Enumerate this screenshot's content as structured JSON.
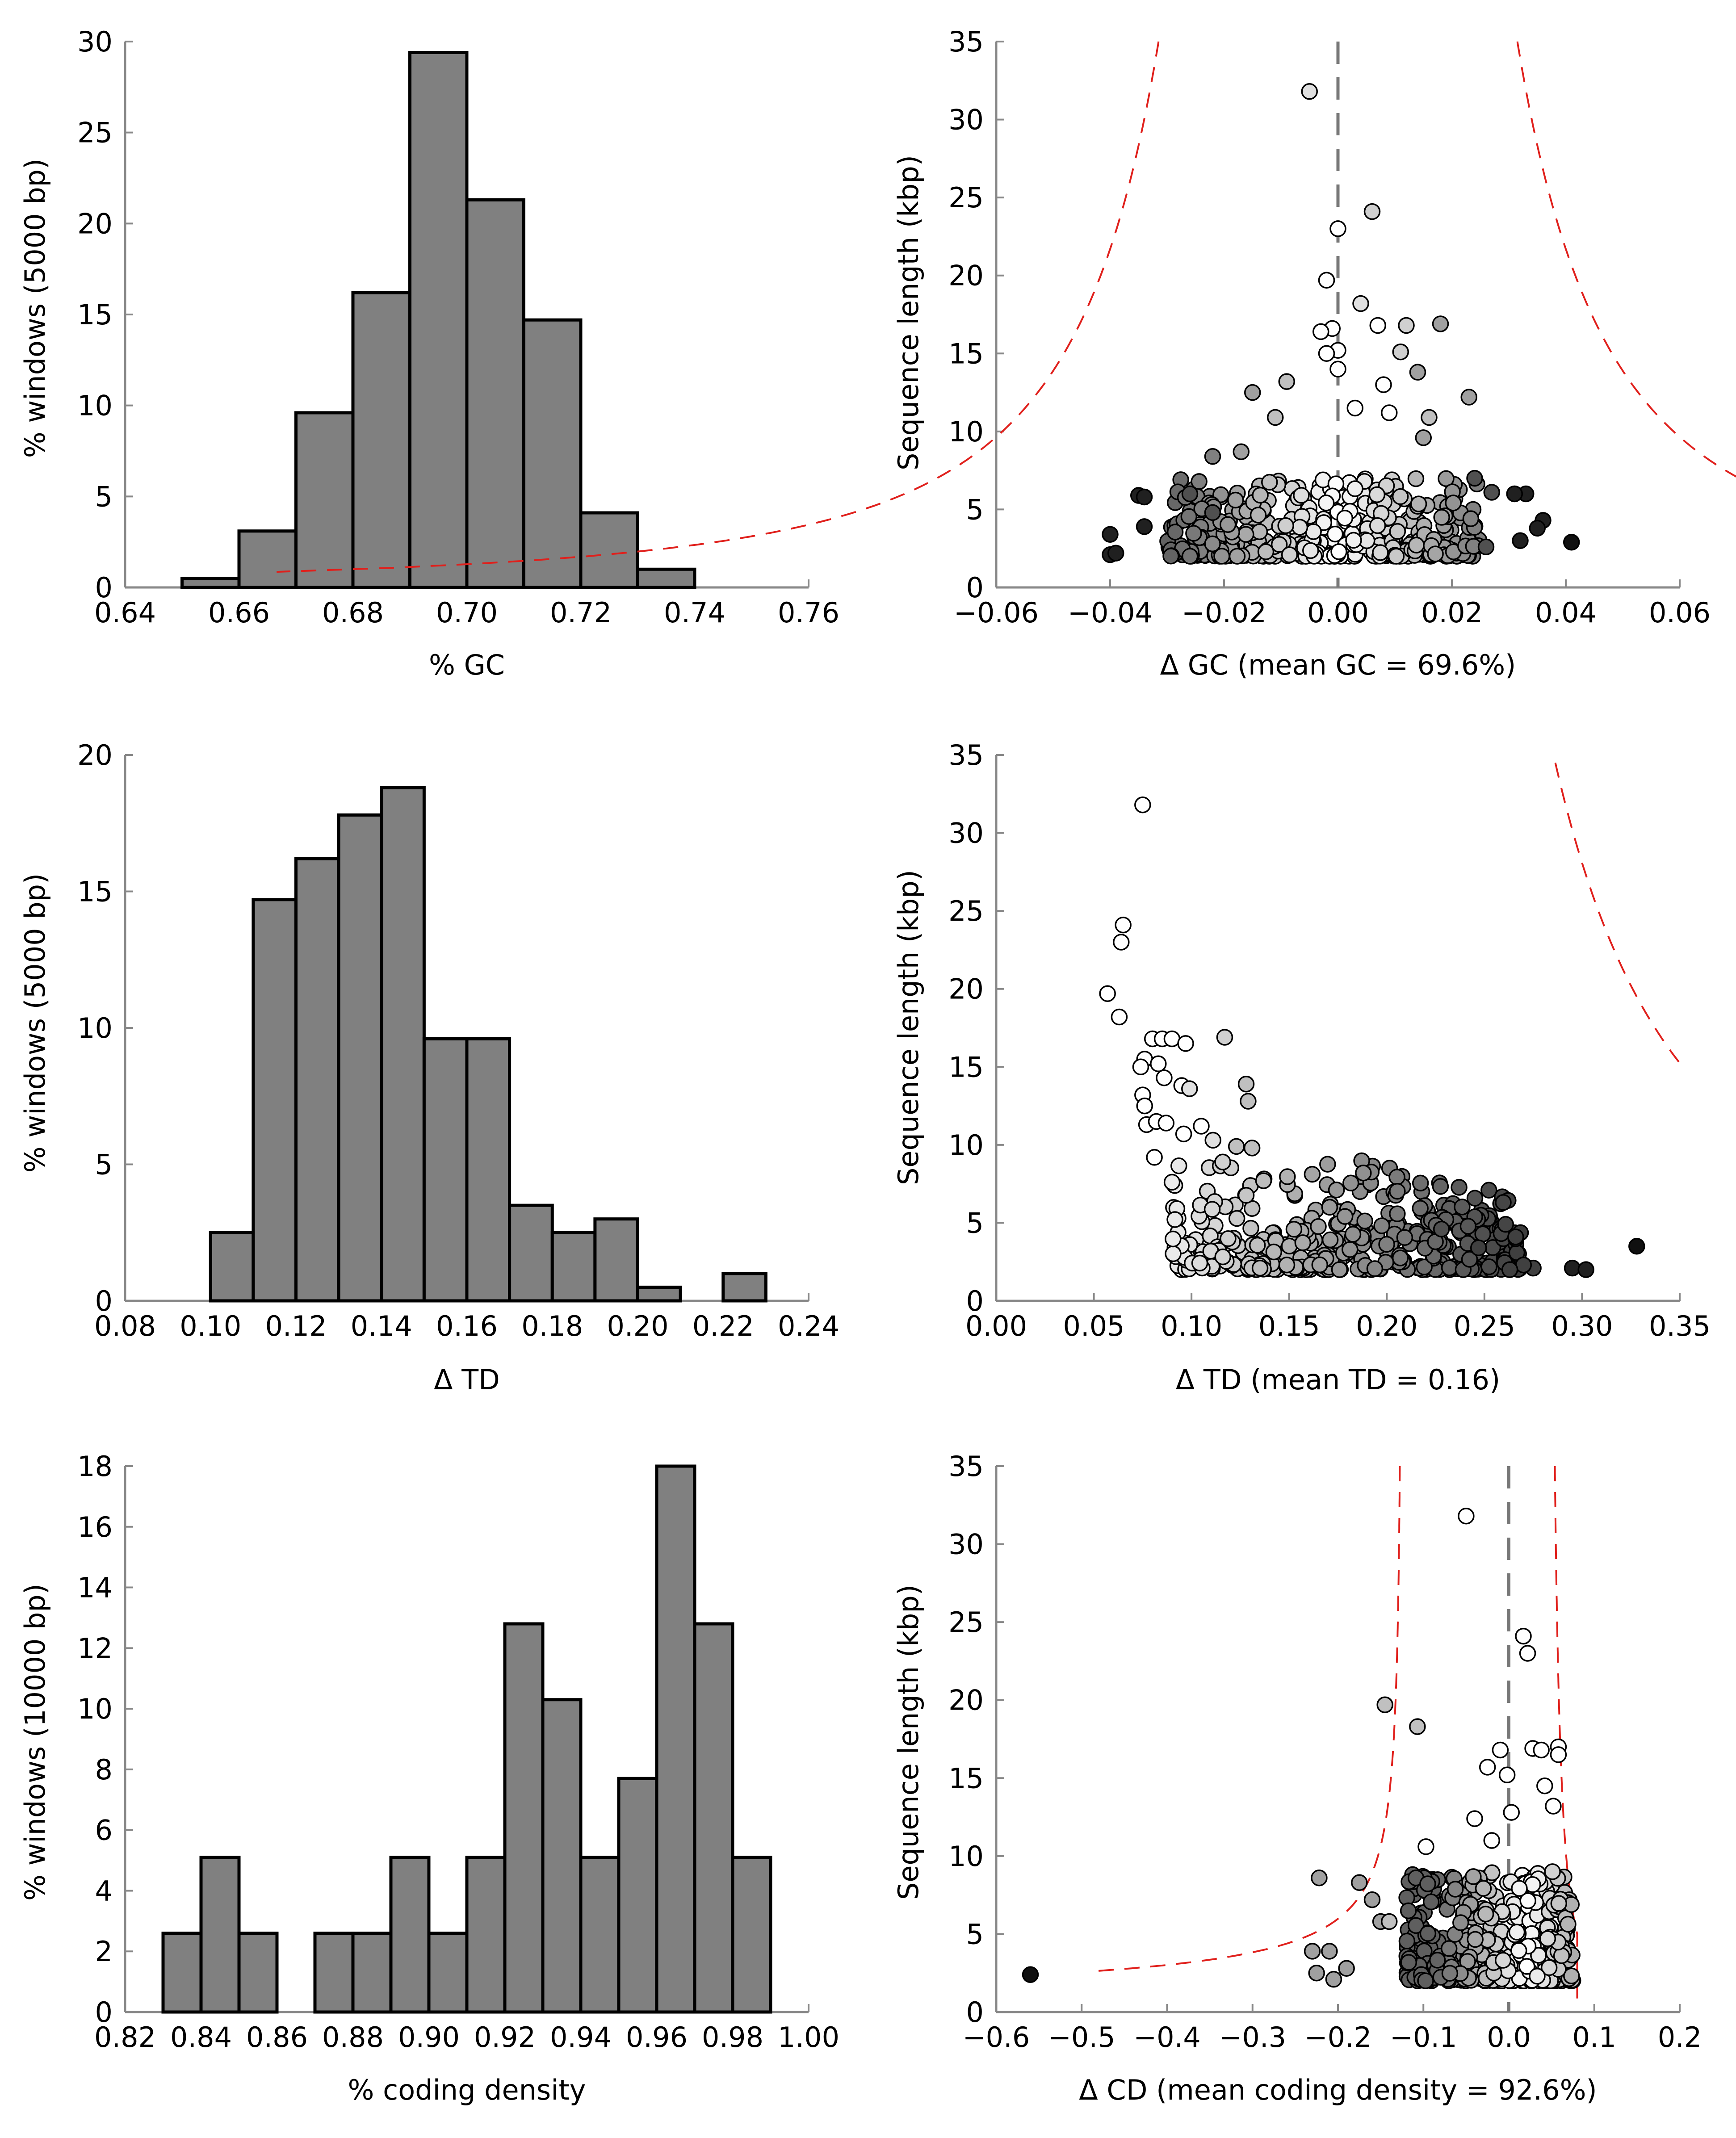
{
  "chart_data": [
    {
      "id": "hist_gc",
      "type": "bar",
      "xlabel": "% GC",
      "ylabel": "% windows (5000 bp)",
      "xlim": [
        0.64,
        0.76
      ],
      "ylim": [
        0,
        30
      ],
      "xticks": [
        "0.64",
        "0.66",
        "0.68",
        "0.70",
        "0.72",
        "0.74",
        "0.76"
      ],
      "yticks": [
        "0",
        "5",
        "10",
        "15",
        "20",
        "25",
        "30"
      ],
      "bin_width": 0.01,
      "bin_edges": [
        0.65,
        0.66,
        0.67,
        0.68,
        0.69,
        0.7,
        0.71,
        0.72,
        0.73
      ],
      "values": [
        0.5,
        3.1,
        9.6,
        16.2,
        29.4,
        21.3,
        14.7,
        4.1,
        1.0
      ],
      "bar_color": "#808080"
    },
    {
      "id": "scatter_gc",
      "type": "scatter",
      "xlabel": "Δ GC (mean GC = 69.6%)",
      "ylabel": "Sequence length (kbp)",
      "xlim": [
        -0.06,
        0.06
      ],
      "ylim": [
        0,
        35
      ],
      "xticks": [
        "−0.06",
        "−0.04",
        "−0.02",
        "0.00",
        "0.02",
        "0.04",
        "0.06"
      ],
      "yticks": [
        "0",
        "5",
        "10",
        "15",
        "20",
        "25",
        "30",
        "35"
      ],
      "zero_line": true,
      "bound_curve": "gc",
      "highlight_points": [
        {
          "x": -0.005,
          "y": 31.8,
          "shade": "#e0e0e0"
        },
        {
          "x": 0.006,
          "y": 24.1,
          "shade": "#d0d0d0"
        },
        {
          "x": 0.0,
          "y": 23.0,
          "shade": "#ffffff"
        },
        {
          "x": -0.002,
          "y": 19.7,
          "shade": "#ffffff"
        },
        {
          "x": 0.004,
          "y": 18.2,
          "shade": "#e0e0e0"
        },
        {
          "x": 0.018,
          "y": 16.9,
          "shade": "#a0a0a0"
        },
        {
          "x": 0.012,
          "y": 16.8,
          "shade": "#d0d0d0"
        },
        {
          "x": -0.001,
          "y": 16.6,
          "shade": "#ffffff"
        },
        {
          "x": 0.007,
          "y": 16.8,
          "shade": "#ffffff"
        },
        {
          "x": -0.003,
          "y": 16.4,
          "shade": "#ffffff"
        },
        {
          "x": 0.011,
          "y": 15.1,
          "shade": "#d0d0d0"
        },
        {
          "x": 0.0,
          "y": 15.2,
          "shade": "#ffffff"
        },
        {
          "x": -0.002,
          "y": 15.0,
          "shade": "#ffffff"
        },
        {
          "x": 0.0,
          "y": 14.0,
          "shade": "#ffffff"
        },
        {
          "x": 0.014,
          "y": 13.8,
          "shade": "#a0a0a0"
        },
        {
          "x": -0.009,
          "y": 13.2,
          "shade": "#c0c0c0"
        },
        {
          "x": 0.008,
          "y": 13.0,
          "shade": "#ffffff"
        },
        {
          "x": 0.023,
          "y": 12.2,
          "shade": "#a0a0a0"
        },
        {
          "x": -0.015,
          "y": 12.5,
          "shade": "#a0a0a0"
        },
        {
          "x": 0.003,
          "y": 11.5,
          "shade": "#ffffff"
        },
        {
          "x": 0.016,
          "y": 10.9,
          "shade": "#c0c0c0"
        },
        {
          "x": -0.011,
          "y": 10.9,
          "shade": "#c0c0c0"
        },
        {
          "x": 0.009,
          "y": 11.2,
          "shade": "#ffffff"
        },
        {
          "x": -0.017,
          "y": 8.7,
          "shade": "#a0a0a0"
        },
        {
          "x": -0.022,
          "y": 8.4,
          "shade": "#808080"
        },
        {
          "x": 0.015,
          "y": 9.6,
          "shade": "#a0a0a0"
        },
        {
          "x": -0.04,
          "y": 3.4,
          "shade": "#202020"
        },
        {
          "x": -0.04,
          "y": 2.1,
          "shade": "#202020"
        },
        {
          "x": -0.039,
          "y": 2.2,
          "shade": "#202020"
        },
        {
          "x": -0.035,
          "y": 5.9,
          "shade": "#202020"
        },
        {
          "x": -0.034,
          "y": 5.8,
          "shade": "#202020"
        },
        {
          "x": -0.034,
          "y": 3.9,
          "shade": "#202020"
        },
        {
          "x": 0.033,
          "y": 6.0,
          "shade": "#202020"
        },
        {
          "x": 0.031,
          "y": 6.0,
          "shade": "#202020"
        },
        {
          "x": 0.032,
          "y": 3.0,
          "shade": "#202020"
        },
        {
          "x": 0.036,
          "y": 4.3,
          "shade": "#202020"
        },
        {
          "x": 0.035,
          "y": 3.8,
          "shade": "#202020"
        },
        {
          "x": 0.041,
          "y": 2.9,
          "shade": "#101010"
        },
        {
          "x": -0.026,
          "y": 6.0,
          "shade": "#505050"
        },
        {
          "x": 0.027,
          "y": 6.1,
          "shade": "#505050"
        },
        {
          "x": 0.024,
          "y": 7.0,
          "shade": "#505050"
        },
        {
          "x": -0.022,
          "y": 4.8,
          "shade": "#505050"
        },
        {
          "x": 0.026,
          "y": 2.6,
          "shade": "#505050"
        }
      ],
      "cloud": {
        "x_range": [
          -0.03,
          0.025
        ],
        "y_range": [
          2,
          7
        ],
        "count": 420
      }
    },
    {
      "id": "hist_td",
      "type": "bar",
      "xlabel": "Δ TD",
      "ylabel": "% windows (5000 bp)",
      "xlim": [
        0.08,
        0.24
      ],
      "ylim": [
        0,
        20
      ],
      "xticks": [
        "0.08",
        "0.10",
        "0.12",
        "0.14",
        "0.16",
        "0.18",
        "0.20",
        "0.22",
        "0.24"
      ],
      "yticks": [
        "0",
        "5",
        "10",
        "15",
        "20"
      ],
      "bin_width": 0.01,
      "bin_edges": [
        0.1,
        0.11,
        0.12,
        0.13,
        0.14,
        0.15,
        0.16,
        0.17,
        0.18,
        0.19,
        0.2,
        0.22
      ],
      "values": [
        2.5,
        14.7,
        16.2,
        17.8,
        18.8,
        9.6,
        9.6,
        3.5,
        2.5,
        3.0,
        0.5,
        1.0
      ],
      "bar_color": "#808080"
    },
    {
      "id": "scatter_td",
      "type": "scatter",
      "xlabel": "Δ TD (mean TD = 0.16)",
      "ylabel": "Sequence length (kbp)",
      "xlim": [
        0.0,
        0.35
      ],
      "ylim": [
        0,
        35
      ],
      "xticks": [
        "0.00",
        "0.05",
        "0.10",
        "0.15",
        "0.20",
        "0.25",
        "0.30",
        "0.35"
      ],
      "yticks": [
        "0",
        "5",
        "10",
        "15",
        "20",
        "25",
        "30",
        "35"
      ],
      "zero_line": false,
      "bound_curve": "td",
      "highlight_points": [
        {
          "x": 0.075,
          "y": 31.8,
          "shade": "#ffffff"
        },
        {
          "x": 0.065,
          "y": 24.1,
          "shade": "#ffffff"
        },
        {
          "x": 0.064,
          "y": 23.0,
          "shade": "#ffffff"
        },
        {
          "x": 0.057,
          "y": 19.7,
          "shade": "#ffffff"
        },
        {
          "x": 0.063,
          "y": 18.2,
          "shade": "#ffffff"
        },
        {
          "x": 0.08,
          "y": 16.8,
          "shade": "#ffffff"
        },
        {
          "x": 0.085,
          "y": 16.8,
          "shade": "#ffffff"
        },
        {
          "x": 0.09,
          "y": 16.8,
          "shade": "#ffffff"
        },
        {
          "x": 0.097,
          "y": 16.5,
          "shade": "#ffffff"
        },
        {
          "x": 0.117,
          "y": 16.9,
          "shade": "#d0d0d0"
        },
        {
          "x": 0.076,
          "y": 15.5,
          "shade": "#ffffff"
        },
        {
          "x": 0.074,
          "y": 15.0,
          "shade": "#ffffff"
        },
        {
          "x": 0.083,
          "y": 15.2,
          "shade": "#ffffff"
        },
        {
          "x": 0.086,
          "y": 14.3,
          "shade": "#ffffff"
        },
        {
          "x": 0.095,
          "y": 13.8,
          "shade": "#ffffff"
        },
        {
          "x": 0.099,
          "y": 13.6,
          "shade": "#e0e0e0"
        },
        {
          "x": 0.075,
          "y": 13.2,
          "shade": "#ffffff"
        },
        {
          "x": 0.076,
          "y": 12.5,
          "shade": "#ffffff"
        },
        {
          "x": 0.128,
          "y": 13.9,
          "shade": "#c0c0c0"
        },
        {
          "x": 0.129,
          "y": 12.8,
          "shade": "#c0c0c0"
        },
        {
          "x": 0.077,
          "y": 11.3,
          "shade": "#ffffff"
        },
        {
          "x": 0.082,
          "y": 11.5,
          "shade": "#ffffff"
        },
        {
          "x": 0.087,
          "y": 11.4,
          "shade": "#ffffff"
        },
        {
          "x": 0.105,
          "y": 11.2,
          "shade": "#ffffff"
        },
        {
          "x": 0.096,
          "y": 10.7,
          "shade": "#ffffff"
        },
        {
          "x": 0.111,
          "y": 10.3,
          "shade": "#e0e0e0"
        },
        {
          "x": 0.123,
          "y": 9.9,
          "shade": "#c0c0c0"
        },
        {
          "x": 0.131,
          "y": 9.8,
          "shade": "#c0c0c0"
        },
        {
          "x": 0.081,
          "y": 9.2,
          "shade": "#ffffff"
        },
        {
          "x": 0.116,
          "y": 8.9,
          "shade": "#d0d0d0"
        },
        {
          "x": 0.188,
          "y": 8.2,
          "shade": "#909090"
        },
        {
          "x": 0.295,
          "y": 2.1,
          "shade": "#202020"
        },
        {
          "x": 0.302,
          "y": 2.0,
          "shade": "#202020"
        },
        {
          "x": 0.328,
          "y": 3.5,
          "shade": "#101010"
        },
        {
          "x": 0.266,
          "y": 4.1,
          "shade": "#404040"
        },
        {
          "x": 0.247,
          "y": 3.4,
          "shade": "#404040"
        },
        {
          "x": 0.228,
          "y": 4.6,
          "shade": "#505050"
        },
        {
          "x": 0.275,
          "y": 2.1,
          "shade": "#404040"
        },
        {
          "x": 0.27,
          "y": 2.3,
          "shade": "#404040"
        },
        {
          "x": 0.263,
          "y": 2.0,
          "shade": "#404040"
        }
      ],
      "cloud": {
        "x_range": [
          0.09,
          0.27
        ],
        "y_range": [
          2,
          8
        ],
        "count": 420
      }
    },
    {
      "id": "hist_cd",
      "type": "bar",
      "xlabel": "% coding density",
      "ylabel": "% windows (10000 bp)",
      "xlim": [
        0.82,
        1.0
      ],
      "ylim": [
        0,
        18
      ],
      "xticks": [
        "0.82",
        "0.84",
        "0.86",
        "0.88",
        "0.90",
        "0.92",
        "0.94",
        "0.96",
        "0.98",
        "1.00"
      ],
      "yticks": [
        "0",
        "2",
        "4",
        "6",
        "8",
        "10",
        "12",
        "14",
        "16",
        "18"
      ],
      "bin_width": 0.01,
      "bin_edges": [
        0.83,
        0.84,
        0.85,
        0.87,
        0.88,
        0.89,
        0.9,
        0.91,
        0.92,
        0.93,
        0.94,
        0.95,
        0.96,
        0.97,
        0.98
      ],
      "values": [
        2.6,
        5.1,
        2.6,
        2.6,
        2.6,
        5.1,
        2.6,
        5.1,
        12.8,
        10.3,
        5.1,
        7.7,
        18.0,
        12.8,
        5.1
      ],
      "bar_color": "#808080"
    },
    {
      "id": "scatter_cd",
      "type": "scatter",
      "xlabel": "Δ CD (mean coding density = 92.6%)",
      "ylabel": "Sequence length (kbp)",
      "xlim": [
        -0.6,
        0.2
      ],
      "ylim": [
        0,
        35
      ],
      "xticks": [
        "−0.6",
        "−0.5",
        "−0.4",
        "−0.3",
        "−0.2",
        "−0.1",
        "0.0",
        "0.1",
        "0.2"
      ],
      "yticks": [
        "0",
        "5",
        "10",
        "15",
        "20",
        "25",
        "30",
        "35"
      ],
      "zero_line": true,
      "bound_curve": "cd",
      "highlight_points": [
        {
          "x": -0.05,
          "y": 31.8,
          "shade": "#ffffff"
        },
        {
          "x": 0.017,
          "y": 24.1,
          "shade": "#ffffff"
        },
        {
          "x": 0.022,
          "y": 23.0,
          "shade": "#ffffff"
        },
        {
          "x": -0.145,
          "y": 19.7,
          "shade": "#c0c0c0"
        },
        {
          "x": -0.107,
          "y": 18.3,
          "shade": "#c0c0c0"
        },
        {
          "x": 0.028,
          "y": 16.9,
          "shade": "#ffffff"
        },
        {
          "x": 0.058,
          "y": 17.0,
          "shade": "#ffffff"
        },
        {
          "x": 0.058,
          "y": 16.5,
          "shade": "#ffffff"
        },
        {
          "x": -0.01,
          "y": 16.8,
          "shade": "#ffffff"
        },
        {
          "x": 0.038,
          "y": 16.8,
          "shade": "#ffffff"
        },
        {
          "x": -0.025,
          "y": 15.7,
          "shade": "#ffffff"
        },
        {
          "x": -0.002,
          "y": 15.2,
          "shade": "#ffffff"
        },
        {
          "x": 0.042,
          "y": 14.5,
          "shade": "#ffffff"
        },
        {
          "x": 0.052,
          "y": 13.2,
          "shade": "#ffffff"
        },
        {
          "x": -0.04,
          "y": 12.4,
          "shade": "#ffffff"
        },
        {
          "x": 0.003,
          "y": 12.8,
          "shade": "#ffffff"
        },
        {
          "x": -0.097,
          "y": 10.6,
          "shade": "#ffffff"
        },
        {
          "x": -0.02,
          "y": 11.0,
          "shade": "#ffffff"
        },
        {
          "x": -0.222,
          "y": 8.6,
          "shade": "#a0a0a0"
        },
        {
          "x": -0.175,
          "y": 8.3,
          "shade": "#a0a0a0"
        },
        {
          "x": -0.21,
          "y": 3.9,
          "shade": "#a0a0a0"
        },
        {
          "x": -0.23,
          "y": 3.9,
          "shade": "#a0a0a0"
        },
        {
          "x": -0.225,
          "y": 2.5,
          "shade": "#a0a0a0"
        },
        {
          "x": -0.205,
          "y": 2.1,
          "shade": "#a0a0a0"
        },
        {
          "x": -0.19,
          "y": 2.8,
          "shade": "#a0a0a0"
        },
        {
          "x": -0.16,
          "y": 7.2,
          "shade": "#a0a0a0"
        },
        {
          "x": -0.15,
          "y": 5.8,
          "shade": "#a0a0a0"
        },
        {
          "x": -0.14,
          "y": 5.8,
          "shade": "#c0c0c0"
        },
        {
          "x": -0.56,
          "y": 2.4,
          "shade": "#101010"
        }
      ],
      "cloud": {
        "x_range": [
          -0.12,
          0.075
        ],
        "y_range": [
          2,
          9
        ],
        "count": 430
      }
    }
  ]
}
